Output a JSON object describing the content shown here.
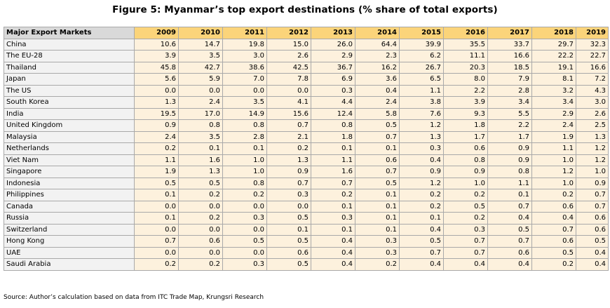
{
  "title": "Figure 5: Myanmar’s top export destinations (% share of total exports)",
  "table": {
    "header_label": "Major Export Markets",
    "years": [
      "2009",
      "2010",
      "2011",
      "2012",
      "2013",
      "2014",
      "2015",
      "2016",
      "2017",
      "2018",
      "2019"
    ],
    "rows": [
      {
        "market": "China",
        "values": [
          "10.6",
          "14.7",
          "19.8",
          "15.0",
          "26.0",
          "64.4",
          "39.9",
          "35.5",
          "33.7",
          "29.7",
          "32.3"
        ]
      },
      {
        "market": "The EU-28",
        "values": [
          "3.9",
          "3.5",
          "3.0",
          "2.6",
          "2.9",
          "2.3",
          "6.2",
          "11.1",
          "16.6",
          "22.2",
          "22.7"
        ]
      },
      {
        "market": "Thailand",
        "values": [
          "45.8",
          "42.7",
          "38.6",
          "42.5",
          "36.7",
          "16.2",
          "26.7",
          "20.3",
          "18.5",
          "19.1",
          "16.6"
        ]
      },
      {
        "market": "Japan",
        "values": [
          "5.6",
          "5.9",
          "7.0",
          "7.8",
          "6.9",
          "3.6",
          "6.5",
          "8.0",
          "7.9",
          "8.1",
          "7.2"
        ]
      },
      {
        "market": "The US",
        "values": [
          "0.0",
          "0.0",
          "0.0",
          "0.0",
          "0.3",
          "0.4",
          "1.1",
          "2.2",
          "2.8",
          "3.2",
          "4.3"
        ]
      },
      {
        "market": "South Korea",
        "values": [
          "1.3",
          "2.4",
          "3.5",
          "4.1",
          "4.4",
          "2.4",
          "3.8",
          "3.9",
          "3.4",
          "3.4",
          "3.0"
        ]
      },
      {
        "market": "India",
        "values": [
          "19.5",
          "17.0",
          "14.9",
          "15.6",
          "12.4",
          "5.8",
          "7.6",
          "9.3",
          "5.5",
          "2.9",
          "2.6"
        ]
      },
      {
        "market": "United Kingdom",
        "values": [
          "0.9",
          "0.8",
          "0.8",
          "0.7",
          "0.8",
          "0.5",
          "1.2",
          "1.8",
          "2.2",
          "2.4",
          "2.5"
        ]
      },
      {
        "market": "Malaysia",
        "values": [
          "2.4",
          "3.5",
          "2.8",
          "2.1",
          "1.8",
          "0.7",
          "1.3",
          "1.7",
          "1.7",
          "1.9",
          "1.3"
        ]
      },
      {
        "market": "Netherlands",
        "values": [
          "0.2",
          "0.1",
          "0.1",
          "0.2",
          "0.1",
          "0.1",
          "0.3",
          "0.6",
          "0.9",
          "1.1",
          "1.2"
        ]
      },
      {
        "market": "Viet Nam",
        "values": [
          "1.1",
          "1.6",
          "1.0",
          "1.3",
          "1.1",
          "0.6",
          "0.4",
          "0.8",
          "0.9",
          "1.0",
          "1.2"
        ]
      },
      {
        "market": "Singapore",
        "values": [
          "1.9",
          "1.3",
          "1.0",
          "0.9",
          "1.6",
          "0.7",
          "0.9",
          "0.9",
          "0.8",
          "1.2",
          "1.0"
        ]
      },
      {
        "market": "Indonesia",
        "values": [
          "0.5",
          "0.5",
          "0.8",
          "0.7",
          "0.7",
          "0.5",
          "1.2",
          "1.0",
          "1.1",
          "1.0",
          "0.9"
        ]
      },
      {
        "market": "Philippines",
        "values": [
          "0.1",
          "0.2",
          "0.2",
          "0.3",
          "0.2",
          "0.1",
          "0.2",
          "0.2",
          "0.1",
          "0.2",
          "0.7"
        ]
      },
      {
        "market": "Canada",
        "values": [
          "0.0",
          "0.0",
          "0.0",
          "0.0",
          "0.1",
          "0.1",
          "0.2",
          "0.5",
          "0.7",
          "0.6",
          "0.7"
        ]
      },
      {
        "market": "Russia",
        "values": [
          "0.1",
          "0.2",
          "0.3",
          "0.5",
          "0.3",
          "0.1",
          "0.1",
          "0.2",
          "0.4",
          "0.4",
          "0.6"
        ]
      },
      {
        "market": "Switzerland",
        "values": [
          "0.0",
          "0.0",
          "0.0",
          "0.1",
          "0.1",
          "0.1",
          "0.4",
          "0.3",
          "0.5",
          "0.7",
          "0.6"
        ]
      },
      {
        "market": "Hong Kong",
        "values": [
          "0.7",
          "0.6",
          "0.5",
          "0.5",
          "0.4",
          "0.3",
          "0.5",
          "0.7",
          "0.7",
          "0.6",
          "0.5"
        ]
      },
      {
        "market": "UAE",
        "values": [
          "0.0",
          "0.0",
          "0.0",
          "0.6",
          "0.4",
          "0.3",
          "0.7",
          "0.7",
          "0.6",
          "0.5",
          "0.4"
        ]
      },
      {
        "market": "Saudi Arabia",
        "values": [
          "0.2",
          "0.2",
          "0.3",
          "0.5",
          "0.4",
          "0.2",
          "0.4",
          "0.4",
          "0.4",
          "0.2",
          "0.4"
        ]
      }
    ]
  },
  "source": "Source: Author’s calculation based on data from ITC Trade Map, Krungsri Research",
  "colors": {
    "header_label_bg": "#d9d9d9",
    "header_year_bg": "#fbd47a",
    "label_cell_bg": "#f2f2f2",
    "value_cell_bg": "#fdf1dd",
    "grid_line": "#a9a9a9"
  }
}
